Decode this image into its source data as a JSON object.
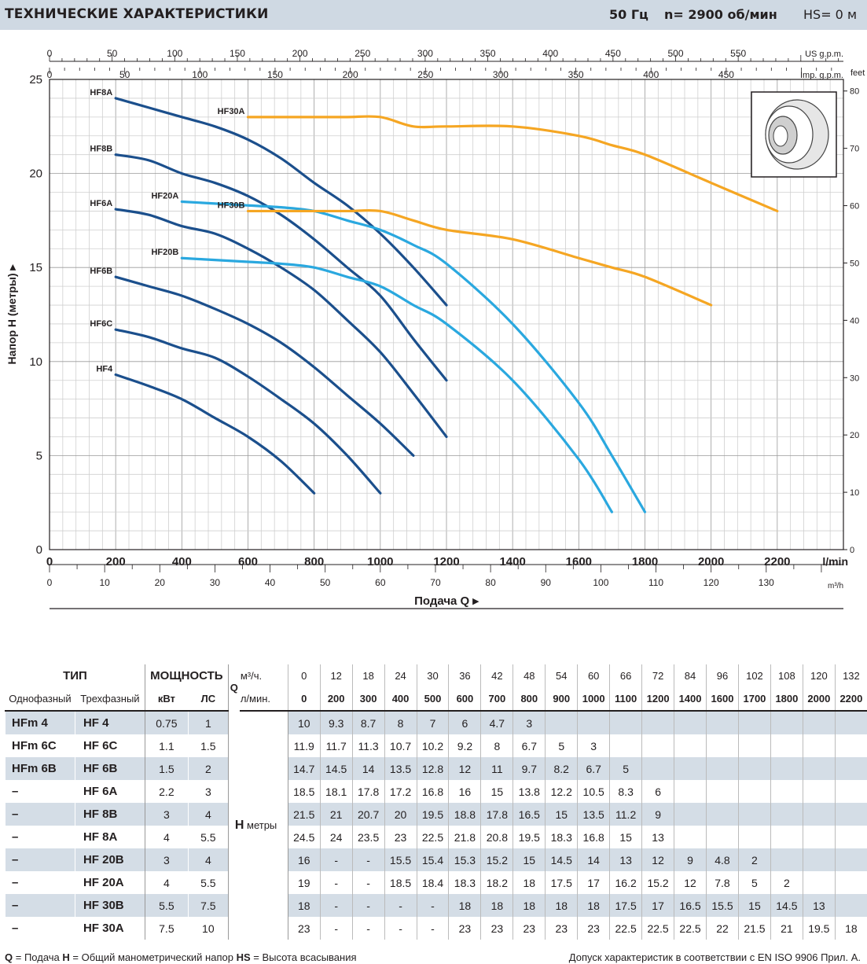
{
  "header": {
    "title": "ТЕХНИЧЕСКИЕ ХАРАКТЕРИСТИКИ",
    "freq": "50 Гц",
    "rpm": "n= 2900  об/мин",
    "hs": "HS= 0 м"
  },
  "chart_data": {
    "type": "line",
    "ylabel": "Напор H  (метры)",
    "xlabel": "Подача Q",
    "x_unit": "l/min",
    "xlim": [
      0,
      2400
    ],
    "ylim": [
      0,
      25
    ],
    "x_ticks": [
      0,
      200,
      400,
      600,
      800,
      1000,
      1200,
      1400,
      1600,
      1800,
      2000,
      2200
    ],
    "y_ticks": [
      0,
      5,
      10,
      15,
      20,
      25
    ],
    "m3h_ticks": [
      0,
      10,
      20,
      30,
      40,
      50,
      60,
      70,
      80,
      90,
      100,
      110,
      120,
      130
    ],
    "m3h_unit": "m³/h",
    "us_gpm_ticks": [
      0,
      50,
      100,
      150,
      200,
      250,
      300,
      350,
      400,
      450,
      500,
      550
    ],
    "us_gpm_unit": "US g.p.m.",
    "imp_gpm_ticks": [
      0,
      50,
      100,
      150,
      200,
      250,
      300,
      350,
      400,
      450
    ],
    "imp_gpm_unit": "Imp. g.p.m.",
    "feet_ticks": [
      0,
      10,
      20,
      30,
      40,
      50,
      60,
      70,
      80
    ],
    "feet_unit": "feet",
    "grid": true,
    "series": [
      {
        "name": "HF4",
        "color": "#1b4f8c",
        "x": [
          200,
          300,
          400,
          500,
          600,
          700,
          800
        ],
        "y": [
          9.3,
          8.7,
          8,
          7,
          6,
          4.7,
          3
        ]
      },
      {
        "name": "HF6C",
        "color": "#1b4f8c",
        "x": [
          200,
          300,
          400,
          500,
          600,
          700,
          800,
          900,
          1000
        ],
        "y": [
          11.7,
          11.3,
          10.7,
          10.2,
          9.2,
          8,
          6.7,
          5,
          3
        ]
      },
      {
        "name": "HF6B",
        "color": "#1b4f8c",
        "x": [
          200,
          300,
          400,
          500,
          600,
          700,
          800,
          900,
          1000,
          1100
        ],
        "y": [
          14.5,
          14,
          13.5,
          12.8,
          12,
          11,
          9.7,
          8.2,
          6.7,
          5
        ]
      },
      {
        "name": "HF6A",
        "color": "#1b4f8c",
        "x": [
          200,
          300,
          400,
          500,
          600,
          700,
          800,
          900,
          1000,
          1100,
          1200
        ],
        "y": [
          18.1,
          17.8,
          17.2,
          16.8,
          16,
          15,
          13.8,
          12.2,
          10.5,
          8.3,
          6
        ]
      },
      {
        "name": "HF8B",
        "color": "#1b4f8c",
        "x": [
          200,
          300,
          400,
          500,
          600,
          700,
          800,
          900,
          1000,
          1100,
          1200
        ],
        "y": [
          21,
          20.7,
          20,
          19.5,
          18.8,
          17.8,
          16.5,
          15,
          13.5,
          11.2,
          9
        ]
      },
      {
        "name": "HF8A",
        "color": "#1b4f8c",
        "x": [
          200,
          300,
          400,
          500,
          600,
          700,
          800,
          900,
          1000,
          1100,
          1200
        ],
        "y": [
          24,
          23.5,
          23,
          22.5,
          21.8,
          20.8,
          19.5,
          18.3,
          16.8,
          15,
          13
        ]
      },
      {
        "name": "HF20B",
        "color": "#2aa8df",
        "x": [
          400,
          500,
          600,
          700,
          800,
          900,
          1000,
          1100,
          1200,
          1400,
          1600,
          1700
        ],
        "y": [
          15.5,
          15.4,
          15.3,
          15.2,
          15,
          14.5,
          14,
          13,
          12,
          9,
          4.8,
          2
        ]
      },
      {
        "name": "HF20A",
        "color": "#2aa8df",
        "x": [
          400,
          500,
          600,
          700,
          800,
          900,
          1000,
          1100,
          1200,
          1400,
          1600,
          1700,
          1800
        ],
        "y": [
          18.5,
          18.4,
          18.3,
          18.2,
          18,
          17.5,
          17,
          16.2,
          15.2,
          12,
          7.8,
          5,
          2
        ]
      },
      {
        "name": "HF30B",
        "color": "#f5a623",
        "x": [
          600,
          700,
          800,
          900,
          1000,
          1100,
          1200,
          1400,
          1600,
          1700,
          1800,
          2000
        ],
        "y": [
          18,
          18,
          18,
          18,
          18,
          17.5,
          17,
          16.5,
          15.5,
          15,
          14.5,
          13
        ]
      },
      {
        "name": "HF30A",
        "color": "#f5a623",
        "x": [
          600,
          700,
          800,
          900,
          1000,
          1100,
          1200,
          1400,
          1600,
          1700,
          1800,
          2000,
          2200
        ],
        "y": [
          23,
          23,
          23,
          23,
          23,
          22.5,
          22.5,
          22.5,
          22,
          21.5,
          21,
          19.5,
          18
        ]
      }
    ]
  },
  "table": {
    "tip": "ТИП",
    "power": "МОЩНОСТЬ",
    "single": "Однофазный",
    "three": "Трехфазный",
    "kw": "кВт",
    "hp": "ЛС",
    "q": "Q",
    "m3h_label": "м³/ч.",
    "lmin_label": "л/мин.",
    "h_label": "H",
    "h_unit": "метры",
    "m3h": [
      "0",
      "12",
      "18",
      "24",
      "30",
      "36",
      "42",
      "48",
      "54",
      "60",
      "66",
      "72",
      "84",
      "96",
      "102",
      "108",
      "120",
      "132"
    ],
    "lmin": [
      "0",
      "200",
      "300",
      "400",
      "500",
      "600",
      "700",
      "800",
      "900",
      "1000",
      "1100",
      "1200",
      "1400",
      "1600",
      "1700",
      "1800",
      "2000",
      "2200"
    ],
    "rows": [
      {
        "single": "HFm 4",
        "three": "HF 4",
        "kw": "0.75",
        "hp": "1",
        "h": [
          "10",
          "9.3",
          "8.7",
          "8",
          "7",
          "6",
          "4.7",
          "3",
          "",
          "",
          "",
          "",
          "",
          "",
          "",
          "",
          "",
          ""
        ]
      },
      {
        "single": "HFm 6C",
        "three": "HF 6C",
        "kw": "1.1",
        "hp": "1.5",
        "h": [
          "11.9",
          "11.7",
          "11.3",
          "10.7",
          "10.2",
          "9.2",
          "8",
          "6.7",
          "5",
          "3",
          "",
          "",
          "",
          "",
          "",
          "",
          "",
          ""
        ]
      },
      {
        "single": "HFm 6B",
        "three": "HF 6B",
        "kw": "1.5",
        "hp": "2",
        "h": [
          "14.7",
          "14.5",
          "14",
          "13.5",
          "12.8",
          "12",
          "11",
          "9.7",
          "8.2",
          "6.7",
          "5",
          "",
          "",
          "",
          "",
          "",
          "",
          ""
        ]
      },
      {
        "single": "–",
        "three": "HF 6A",
        "kw": "2.2",
        "hp": "3",
        "h": [
          "18.5",
          "18.1",
          "17.8",
          "17.2",
          "16.8",
          "16",
          "15",
          "13.8",
          "12.2",
          "10.5",
          "8.3",
          "6",
          "",
          "",
          "",
          "",
          "",
          ""
        ]
      },
      {
        "single": "–",
        "three": "HF 8B",
        "kw": "3",
        "hp": "4",
        "h": [
          "21.5",
          "21",
          "20.7",
          "20",
          "19.5",
          "18.8",
          "17.8",
          "16.5",
          "15",
          "13.5",
          "11.2",
          "9",
          "",
          "",
          "",
          "",
          "",
          ""
        ]
      },
      {
        "single": "–",
        "three": "HF 8A",
        "kw": "4",
        "hp": "5.5",
        "h": [
          "24.5",
          "24",
          "23.5",
          "23",
          "22.5",
          "21.8",
          "20.8",
          "19.5",
          "18.3",
          "16.8",
          "15",
          "13",
          "",
          "",
          "",
          "",
          "",
          ""
        ]
      },
      {
        "single": "–",
        "three": "HF 20B",
        "kw": "3",
        "hp": "4",
        "h": [
          "16",
          "-",
          "-",
          "15.5",
          "15.4",
          "15.3",
          "15.2",
          "15",
          "14.5",
          "14",
          "13",
          "12",
          "9",
          "4.8",
          "2",
          "",
          "",
          ""
        ]
      },
      {
        "single": "–",
        "three": "HF 20A",
        "kw": "4",
        "hp": "5.5",
        "h": [
          "19",
          "-",
          "-",
          "18.5",
          "18.4",
          "18.3",
          "18.2",
          "18",
          "17.5",
          "17",
          "16.2",
          "15.2",
          "12",
          "7.8",
          "5",
          "2",
          "",
          ""
        ]
      },
      {
        "single": "–",
        "three": "HF 30B",
        "kw": "5.5",
        "hp": "7.5",
        "h": [
          "18",
          "-",
          "-",
          "-",
          "-",
          "18",
          "18",
          "18",
          "18",
          "18",
          "17.5",
          "17",
          "16.5",
          "15.5",
          "15",
          "14.5",
          "13",
          ""
        ]
      },
      {
        "single": "–",
        "three": "HF 30A",
        "kw": "7.5",
        "hp": "10",
        "h": [
          "23",
          "-",
          "-",
          "-",
          "-",
          "23",
          "23",
          "23",
          "23",
          "23",
          "22.5",
          "22.5",
          "22.5",
          "22",
          "21.5",
          "21",
          "19.5",
          "18"
        ]
      }
    ]
  },
  "footer": {
    "left_q": "Q",
    "left_q_text": " = Подача  ",
    "left_h": "H",
    "left_h_text": " = Общий манометрический напор  ",
    "left_hs": "HS",
    "left_hs_text": " = Высота всасывания",
    "right": "Допуск характеристик в соответствии с EN ISO 9906 Прил. A."
  }
}
